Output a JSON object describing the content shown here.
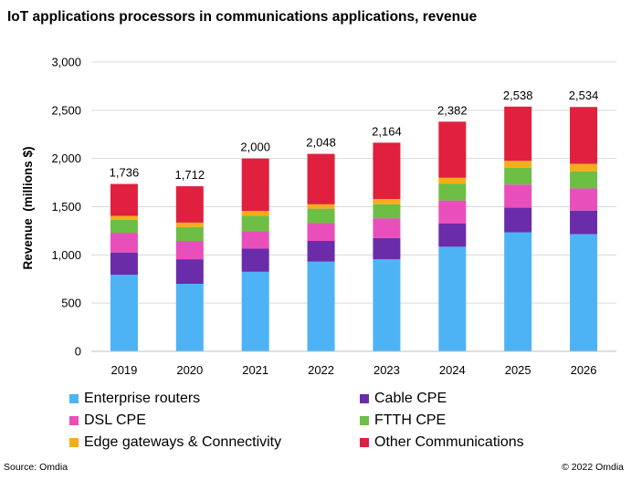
{
  "chart_data": {
    "type": "bar",
    "stacked": true,
    "title": "IoT applications processors in communications applications, revenue",
    "ylabel": "Revenue  (millions $)",
    "xlabel": "",
    "ylim": [
      0,
      3000
    ],
    "yticks": [
      0,
      500,
      1000,
      1500,
      2000,
      2500,
      3000
    ],
    "ytick_labels": [
      "0",
      "500",
      "1,000",
      "1,500",
      "2,000",
      "2,500",
      "3,000"
    ],
    "grid": true,
    "legend_position": "bottom",
    "categories": [
      "2019",
      "2020",
      "2021",
      "2022",
      "2023",
      "2024",
      "2025",
      "2026"
    ],
    "totals": [
      1736,
      1712,
      2000,
      2048,
      2164,
      2382,
      2538,
      2534
    ],
    "total_labels": [
      "1,736",
      "1,712",
      "2,000",
      "2,048",
      "2,164",
      "2,382",
      "2,538",
      "2,534"
    ],
    "series": [
      {
        "name": "Enterprise routers",
        "color": "#4DB3F5",
        "values": [
          795,
          700,
          825,
          930,
          955,
          1085,
          1235,
          1215
        ]
      },
      {
        "name": "Cable CPE",
        "color": "#6A2CA8",
        "values": [
          230,
          255,
          240,
          215,
          220,
          240,
          255,
          245
        ]
      },
      {
        "name": "DSL CPE",
        "color": "#E94FBA",
        "values": [
          205,
          190,
          180,
          185,
          205,
          240,
          240,
          230
        ]
      },
      {
        "name": "FTTH CPE",
        "color": "#6DBE45",
        "values": [
          135,
          145,
          160,
          150,
          145,
          175,
          175,
          175
        ]
      },
      {
        "name": "Edge gateways & Connectivity",
        "color": "#F4AE1B",
        "values": [
          40,
          45,
          50,
          45,
          55,
          60,
          70,
          80
        ]
      },
      {
        "name": "Other Communications",
        "color": "#E0203E",
        "values": [
          331,
          377,
          545,
          523,
          584,
          582,
          563,
          589
        ]
      }
    ]
  },
  "footer": {
    "source": "Source: Omdia",
    "copyright": "© 2022 Omdia"
  }
}
